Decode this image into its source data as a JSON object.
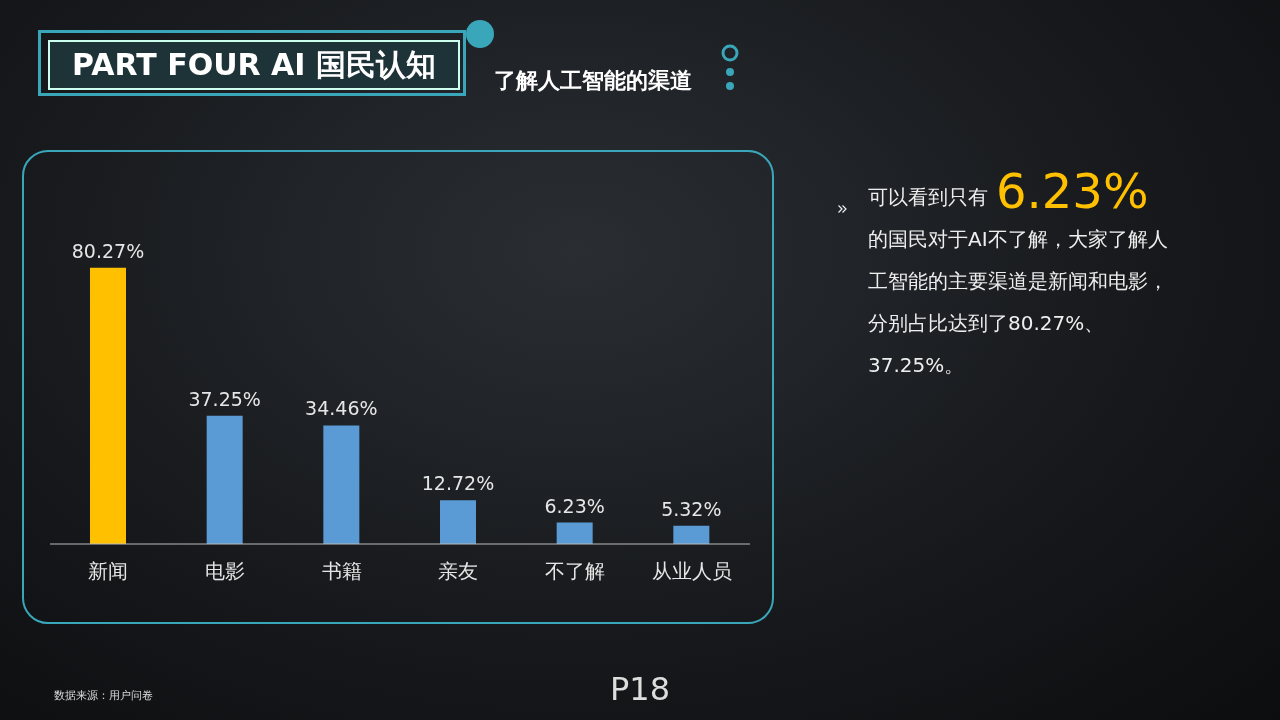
{
  "chart_data": {
    "type": "bar",
    "title": "PART FOUR AI 国民认知",
    "subtitle": "了解人工智能的渠道",
    "categories": [
      "新闻",
      "电影",
      "书籍",
      "亲友",
      "不了解",
      "从业人员"
    ],
    "values": [
      80.27,
      37.25,
      34.46,
      12.72,
      6.23,
      5.32
    ],
    "colors": [
      "#ffc000",
      "#5b9bd5",
      "#5b9bd5",
      "#5b9bd5",
      "#5b9bd5",
      "#5b9bd5"
    ],
    "value_labels": [
      "80.27%",
      "37.25%",
      "34.46%",
      "12.72%",
      "6.23%",
      "5.32%"
    ],
    "annotations": [
      "可以看到只有",
      "6.23%",
      "的国民对于AI不了解，大家了解人工智能的主要渠道是新闻和电影，分别占比达到了80.27%、37.25%。",
      "数据来源：用户问卷",
      "P18"
    ]
  }
}
